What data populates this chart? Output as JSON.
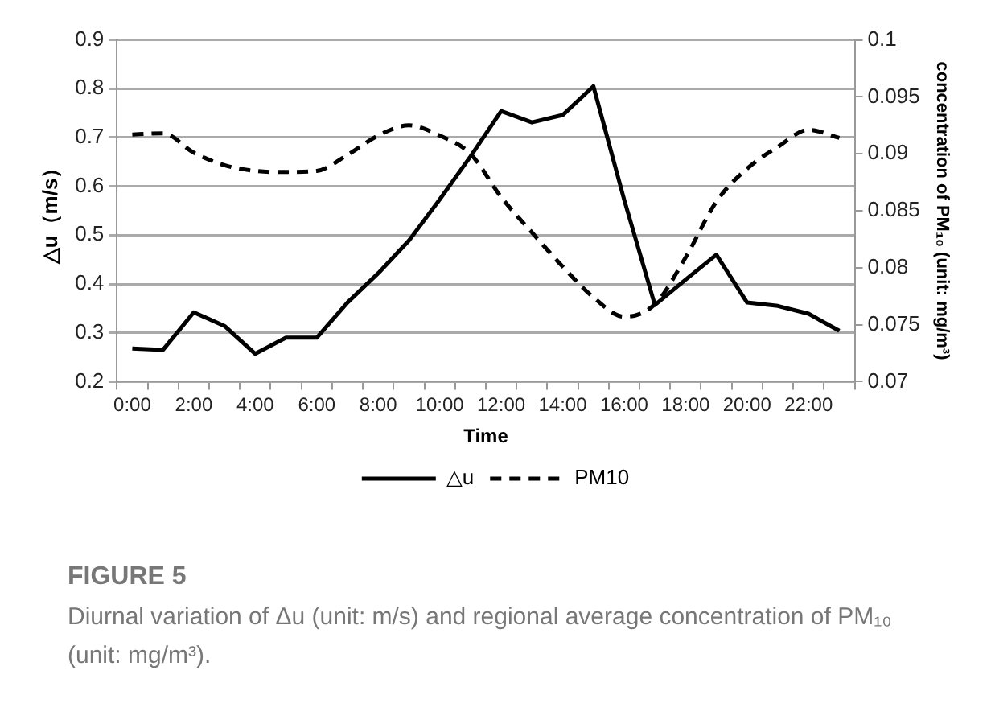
{
  "chart_data": {
    "type": "line",
    "xlabel": "Time",
    "ylabel": "△u（m/s）",
    "y2label": "concentration of PM₁₀ (unit: mg/m³)",
    "categories": [
      "0:00",
      null,
      "2:00",
      null,
      "4:00",
      null,
      "6:00",
      null,
      "8:00",
      null,
      "10:00",
      null,
      "12:00",
      null,
      "14:00",
      null,
      "16:00",
      null,
      "18:00",
      null,
      "20:00",
      null,
      "22:00",
      null
    ],
    "series": [
      {
        "name": "△u",
        "color": "#000000",
        "line_style": "solid",
        "values": [
          0.268,
          0.265,
          0.342,
          0.314,
          0.257,
          0.29,
          0.29,
          0.362,
          0.422,
          0.489,
          0.573,
          0.661,
          0.754,
          0.731,
          0.746,
          0.805,
          0.573,
          0.357,
          0.409,
          0.46,
          0.362,
          0.355,
          0.339,
          0.304
        ]
      },
      {
        "name": "PM10",
        "color": "#000000",
        "line_style": "dashed",
        "axis": "y2",
        "values": [
          0.0917,
          0.0918,
          0.0901,
          0.089,
          0.0885,
          0.0884,
          0.0885,
          0.0899,
          0.0916,
          0.0925,
          0.0916,
          0.09,
          0.0862,
          0.0831,
          0.0801,
          0.0774,
          0.0757,
          0.0768,
          0.0809,
          0.0858,
          0.0887,
          0.0906,
          0.0921,
          0.0914
        ]
      }
    ],
    "ylim": [
      0.2,
      0.9
    ],
    "yticks": [
      0.2,
      0.3,
      0.4,
      0.5,
      0.6,
      0.7,
      0.8,
      0.9
    ],
    "y2lim": [
      0.07,
      0.1
    ],
    "y2ticks": [
      0.07,
      0.075,
      0.08,
      0.085,
      0.09,
      0.095,
      0.1
    ],
    "grid": "y",
    "legend": "bottom",
    "marker": "none",
    "annotations": [
      "FIGURE 5",
      "Diurnal variation of Δu (unit: m/s) and regional average concentration of PM₁₀ (unit: mg/m³)."
    ]
  }
}
